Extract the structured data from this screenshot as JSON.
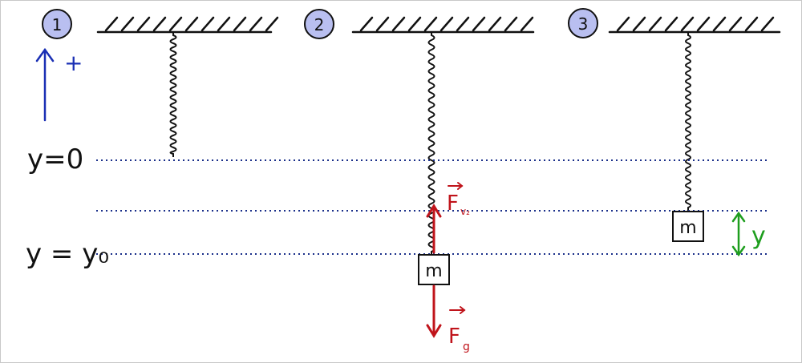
{
  "steps": [
    {
      "label": "1"
    },
    {
      "label": "2"
    },
    {
      "label": "3"
    }
  ],
  "positive_direction": {
    "label": "+"
  },
  "levels": {
    "y0_label": "y=0",
    "yeq_label": "y = y₀"
  },
  "masses": {
    "mass2_label": "m",
    "mass3_label": "m"
  },
  "forces": {
    "spring_force": {
      "label": "F",
      "subscript": "v₂"
    },
    "gravity_force": {
      "label": "F",
      "subscript": "g"
    }
  },
  "displacement": {
    "label": "y"
  },
  "colors": {
    "ink": "#111111",
    "blue": "#1a2fb4",
    "circle_fill": "#b9bff0",
    "red": "#c0141b",
    "green": "#1e9e1e",
    "dotted": "#1a2f8a"
  }
}
